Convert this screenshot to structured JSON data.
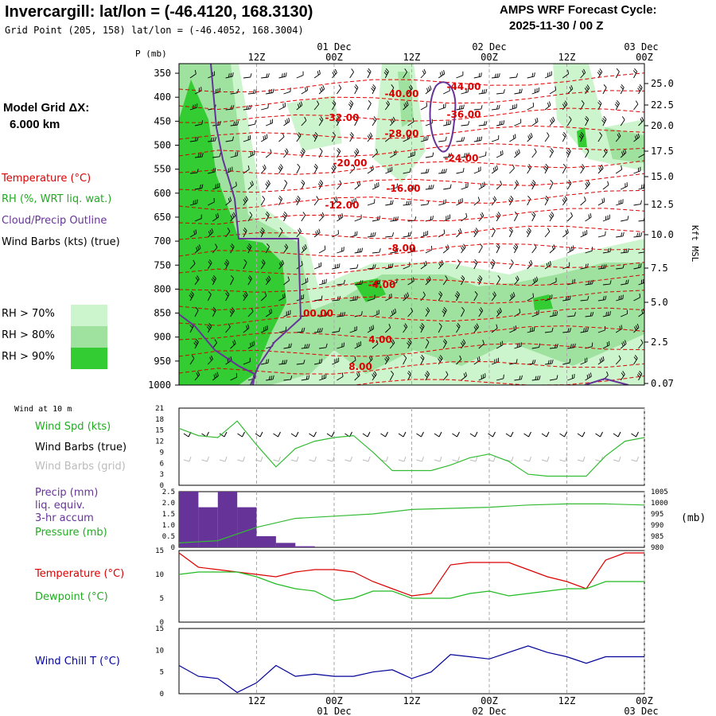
{
  "header": {
    "title": "Invercargill:  lat/lon = (-46.4120, 168.3130)",
    "grid_point": "Grid Point (205, 158) lat/lon = (-46.4052, 168.3004)",
    "model_title": "AMPS WRF Forecast Cycle:",
    "cycle": "2025-11-30 / 00  Z",
    "grid_dx_label": "Model Grid ΔX:",
    "grid_dx_value": "6.000 km"
  },
  "time_axis": {
    "top_ticks": [
      "12Z",
      "00Z",
      "12Z",
      "00Z",
      "12Z",
      "00Z"
    ],
    "top_dates": [
      "01 Dec",
      "02 Dec",
      "03 Dec"
    ],
    "bottom_ticks": [
      "12Z",
      "00Z",
      "12Z",
      "00Z",
      "12Z",
      "00Z"
    ],
    "bottom_dates": [
      "01 Dec",
      "02 Dec",
      "03 Dec"
    ],
    "hours": [
      12,
      24,
      36,
      48,
      60,
      72
    ]
  },
  "legend": {
    "temperature": "Temperature (°C)",
    "rh": "RH (%, WRT liq. wat.)",
    "cloud": "Cloud/Precip Outline",
    "barbs": "Wind Barbs (kts) (true)",
    "rh70": "RH > 70%",
    "rh80": "RH > 80%",
    "rh90": "RH > 90%",
    "colors": {
      "temperature": "#dd0000",
      "rh70": "#cdf5cd",
      "rh80": "#9fe29f",
      "rh90": "#33cc33",
      "cloud": "#663399",
      "wind": "#33bb33",
      "dew": "#22bb22",
      "chill": "#000099",
      "precip": "#663399"
    }
  },
  "chart_data": [
    {
      "type": "heatmap",
      "name_hint": "cross-section",
      "y_label": "P (mb)",
      "right_label": "Kft MSL",
      "pressure_ticks": [
        350,
        400,
        450,
        500,
        550,
        600,
        650,
        700,
        750,
        800,
        850,
        900,
        950,
        1000
      ],
      "height_ticks": [
        "25.0",
        "22.5",
        "20.0",
        "17.5",
        "15.0",
        "12.5",
        "10.0",
        "7.5",
        "5.0",
        "2.5",
        "0.07"
      ],
      "temperature_labels": [
        "-44.00",
        "-40.00",
        "-36.00",
        "-32.00",
        "-28.00",
        "-24.00",
        "-20.00",
        "-16.00",
        "-12.00",
        "-8.00",
        "-4.00",
        "00.00",
        "4.00",
        "8.00"
      ]
    },
    {
      "type": "line",
      "panel_title": "Wind at 10 m",
      "series_label": "Wind Spd (kts)",
      "barbs_true": "Wind Barbs (true)",
      "barbs_grid": "Wind Barbs (grid)",
      "ylim": [
        0,
        21
      ],
      "y_ticks": [
        0,
        3,
        6,
        9,
        12,
        15,
        18,
        21
      ],
      "x": [
        0,
        3,
        6,
        9,
        12,
        15,
        18,
        21,
        24,
        27,
        30,
        33,
        36,
        39,
        42,
        45,
        48,
        51,
        54,
        57,
        60,
        63,
        66,
        69,
        72
      ],
      "values": [
        15.5,
        13.5,
        13,
        17.5,
        11,
        5,
        10,
        12,
        13,
        13.5,
        9,
        4,
        4,
        4,
        5.5,
        7.5,
        8.5,
        6.5,
        3,
        2.5,
        2.5,
        2.5,
        8,
        12,
        13
      ]
    },
    {
      "type": "bar",
      "series_label_1": "Precip (mm)",
      "series_label_2": "liq. equiv.",
      "series_label_3": "3-hr accum",
      "pressure_label": "Pressure (mb)",
      "pressure_unit": "(mb)",
      "ylim": [
        0,
        2.5
      ],
      "y_ticks": [
        "0",
        "0.5",
        "1.0",
        "1.5",
        "2.0",
        "2.5"
      ],
      "pressure_ylim": [
        980,
        1005
      ],
      "pressure_ticks": [
        980,
        985,
        990,
        995,
        1000,
        1005
      ],
      "precip_x": [
        1.5,
        4.5,
        7.5,
        10.5,
        13.5,
        16.5,
        19.5
      ],
      "precip": [
        2.5,
        1.8,
        2.5,
        1.8,
        0.5,
        0.2,
        0.05
      ],
      "pressure_x": [
        0,
        6,
        12,
        18,
        24,
        30,
        36,
        42,
        48,
        54,
        60,
        66,
        72
      ],
      "pressure": [
        982,
        983,
        989,
        993,
        994,
        995,
        997,
        997.5,
        998,
        999,
        999.5,
        999.5,
        999
      ]
    },
    {
      "type": "line",
      "series_label_1": "Temperature (°C)",
      "series_label_2": "Dewpoint (°C)",
      "ylim": [
        0,
        15
      ],
      "y_ticks": [
        0,
        5,
        10,
        15
      ],
      "x": [
        0,
        3,
        6,
        9,
        12,
        15,
        18,
        21,
        24,
        27,
        30,
        33,
        36,
        39,
        42,
        45,
        48,
        51,
        54,
        57,
        60,
        63,
        66,
        69,
        72
      ],
      "temperature": [
        14.5,
        11.5,
        11,
        10.5,
        10,
        9.5,
        10.5,
        11,
        11,
        10.5,
        8.5,
        7,
        5.5,
        6,
        12,
        12.5,
        12.5,
        12.5,
        11,
        9.5,
        8.5,
        7,
        13,
        14.5,
        14.5
      ],
      "dewpoint": [
        10,
        10.5,
        10.5,
        10.5,
        9.5,
        8,
        7,
        6.5,
        4.5,
        5,
        6.5,
        6.5,
        5,
        5,
        5,
        6,
        6.5,
        5.5,
        6,
        6.5,
        7,
        7,
        8.5,
        8.5,
        8.5
      ]
    },
    {
      "type": "line",
      "series_label": "Wind Chill T (°C)",
      "ylim": [
        0,
        15
      ],
      "y_ticks": [
        0,
        5,
        10,
        15
      ],
      "x": [
        0,
        3,
        6,
        9,
        12,
        15,
        18,
        21,
        24,
        27,
        30,
        33,
        36,
        39,
        42,
        45,
        48,
        51,
        54,
        57,
        60,
        63,
        66,
        69,
        72
      ],
      "values": [
        6.5,
        4,
        3.5,
        0.3,
        2.5,
        6.5,
        4,
        4.5,
        4,
        4,
        5,
        5.5,
        3.5,
        5,
        9,
        8.5,
        8,
        9.5,
        11,
        9.5,
        8.5,
        7,
        8.5,
        8.5,
        8.5
      ]
    }
  ]
}
